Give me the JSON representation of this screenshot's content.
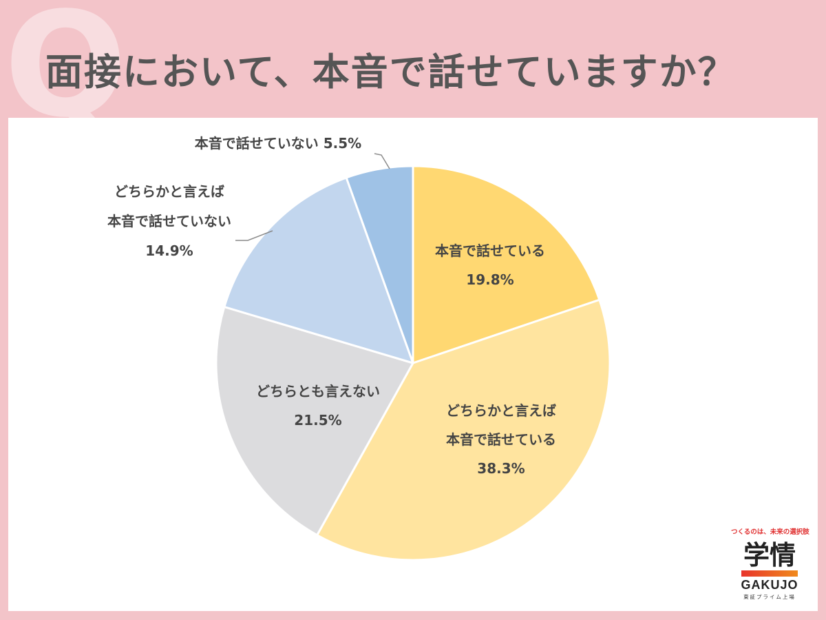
{
  "background": {
    "q_mark": "Q"
  },
  "title": "面接において、本音で話せていますか？",
  "chart_data": {
    "type": "pie",
    "title": "",
    "start_angle_deg": 0,
    "direction": "clockwise",
    "slices": [
      {
        "label_lines": [
          "本音で話せている"
        ],
        "value": 19.8,
        "value_text": "19.8%",
        "color": "#ffd872",
        "label_position": "inside"
      },
      {
        "label_lines": [
          "どちらかと言えば",
          "本音で話せている"
        ],
        "value": 38.3,
        "value_text": "38.3%",
        "color": "#ffe49f",
        "label_position": "inside"
      },
      {
        "label_lines": [
          "どちらとも言えない"
        ],
        "value": 21.5,
        "value_text": "21.5%",
        "color": "#dcdcde",
        "label_position": "inside"
      },
      {
        "label_lines": [
          "どちらかと言えば",
          "本音で話せていない"
        ],
        "value": 14.9,
        "value_text": "14.9%",
        "color": "#c2d6ee",
        "label_position": "outside"
      },
      {
        "label_lines": [
          "本音で話せていない 5.5%"
        ],
        "value": 5.5,
        "value_text": "",
        "color": "#9fc2e6",
        "label_position": "outside"
      }
    ]
  },
  "logo": {
    "tagline": "つくるのは、未来の選択肢",
    "kanji": "学情",
    "name_en": "GAKUJO",
    "market": "東証プライム上場"
  }
}
